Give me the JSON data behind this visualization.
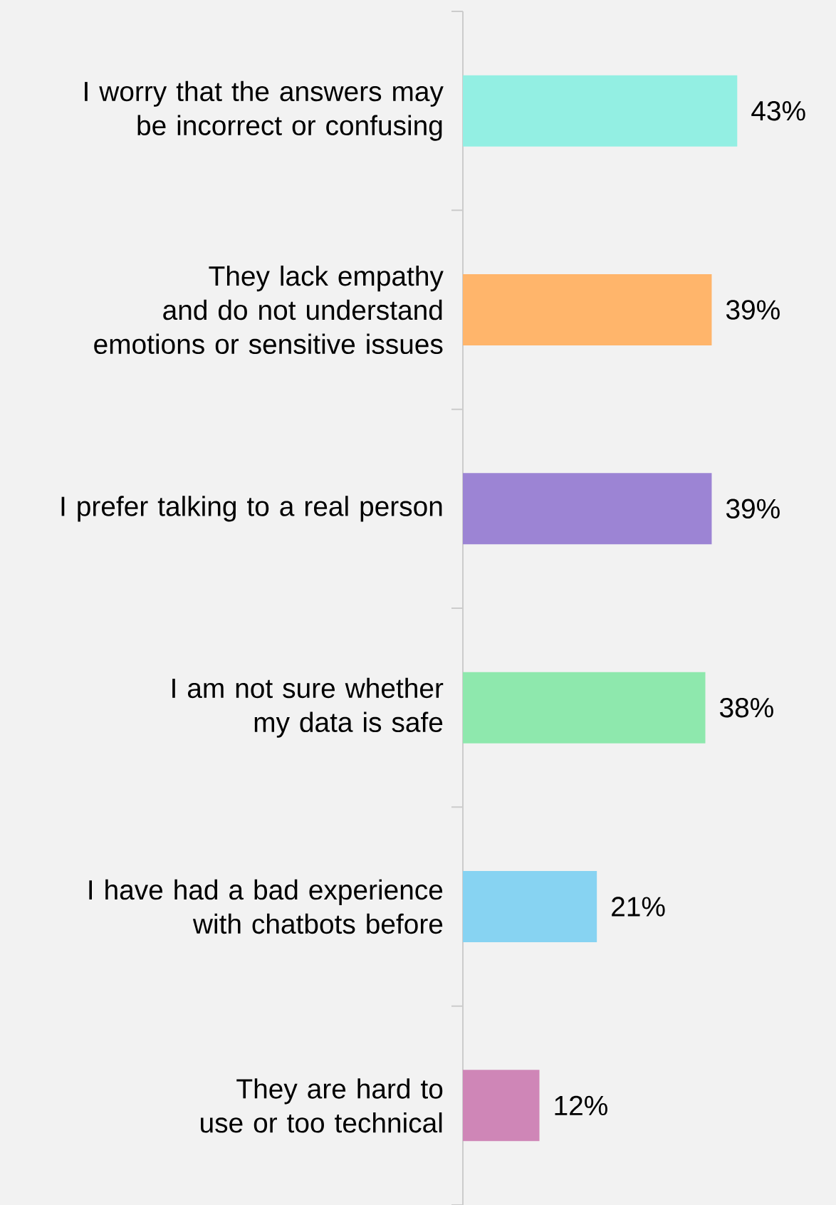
{
  "chart_data": {
    "type": "bar",
    "orientation": "horizontal",
    "categories": [
      "I worry that the answers may be incorrect or confusing",
      "They lack empathy and do not understand emotions or sensitive issues",
      "I prefer talking to a real person",
      "I am not sure whether my data is safe",
      "I have had a bad experience with chatbots before",
      "They are hard to use or too technical"
    ],
    "values": [
      43,
      39,
      39,
      38,
      21,
      12
    ],
    "value_labels": [
      "43%",
      "39%",
      "39%",
      "38%",
      "21%",
      "12%"
    ],
    "colors": [
      "#93efe3",
      "#ffb56b",
      "#9c84d4",
      "#8ee8ad",
      "#87d3f2",
      "#cf86b7"
    ],
    "tick_labels": "y"
  }
}
